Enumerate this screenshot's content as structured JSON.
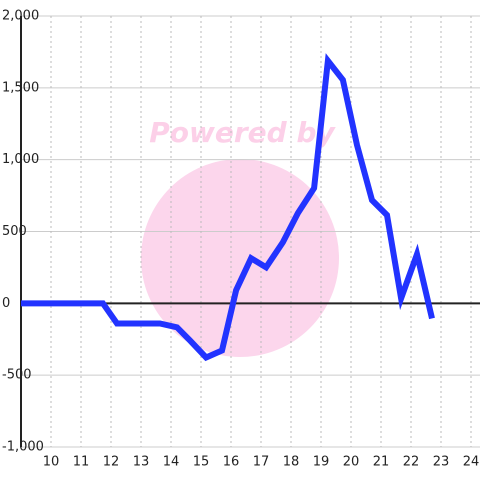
{
  "chart_data": {
    "type": "line",
    "watermark": "Powered by",
    "x": [
      9,
      11.73,
      12.2,
      13.63,
      14.2,
      14.63,
      15.17,
      15.7,
      16.17,
      16.67,
      17.17,
      17.73,
      18.23,
      18.77,
      19.23,
      19.73,
      20.2,
      20.7,
      21.2,
      21.67,
      22.2,
      22.7
    ],
    "series": [
      {
        "color": "#2233ff",
        "values": [
          0,
          0,
          -140,
          -140,
          -167,
          -258,
          -377,
          -328,
          91,
          314,
          251,
          425,
          628,
          802,
          1688,
          1555,
          1102,
          718,
          614,
          35,
          342,
          -105
        ]
      }
    ],
    "xlim": [
      9,
      24.3
    ],
    "xticks": [
      10,
      11,
      12,
      13,
      14,
      15,
      16,
      17,
      18,
      19,
      20,
      21,
      22,
      23,
      24
    ],
    "ylim": [
      -1000,
      2000
    ],
    "yticks": [
      {
        "value": -1000,
        "label": "-1,000"
      },
      -500,
      0,
      500,
      {
        "value": 1000,
        "label": "1,000"
      },
      {
        "value": 1500,
        "label": "1,500"
      },
      {
        "value": 2000,
        "label": "2,000"
      }
    ],
    "grid": true
  }
}
